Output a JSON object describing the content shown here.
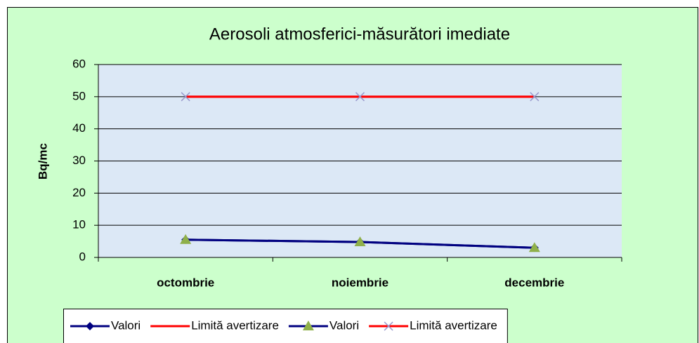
{
  "chart_data": {
    "type": "line",
    "title": "Aerosoli atmosferici-măsurători imediate",
    "y_label": "Bq/mc",
    "categories": [
      "octombrie",
      "noiembrie",
      "decembrie"
    ],
    "series": [
      {
        "name": "Valori",
        "color": "#000080",
        "marker": "diamond",
        "marker_color": "#000080",
        "values": [
          5.5,
          4.8,
          3.0
        ]
      },
      {
        "name": "Limită avertizare",
        "color": "#ff0000",
        "marker": "none",
        "marker_color": "#ff0000",
        "values": [
          50,
          50,
          50
        ]
      },
      {
        "name": "Valori",
        "color": "#000080",
        "marker": "triangle",
        "marker_color": "#8fb04a",
        "values": [
          5.5,
          4.8,
          3.0
        ]
      },
      {
        "name": "Limită avertizare",
        "color": "#ff0000",
        "marker": "x",
        "marker_color": "#9999cc",
        "values": [
          50,
          50,
          50
        ]
      }
    ],
    "ylim": [
      0,
      60
    ],
    "yticks": [
      0,
      10,
      20,
      30,
      40,
      50,
      60
    ],
    "grid": true,
    "legend": "bottom"
  }
}
